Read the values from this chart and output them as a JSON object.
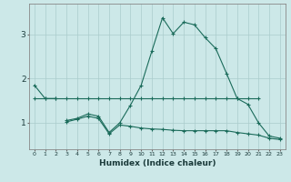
{
  "xlabel": "Humidex (Indice chaleur)",
  "bg_color": "#cce8e8",
  "grid_color": "#aacccc",
  "line_color": "#1a6b5a",
  "x": [
    0,
    1,
    2,
    3,
    4,
    5,
    6,
    7,
    8,
    9,
    10,
    11,
    12,
    13,
    14,
    15,
    16,
    17,
    18,
    19,
    20,
    21,
    22,
    23
  ],
  "line_upper": [
    1.85,
    1.55,
    1.55,
    null,
    null,
    null,
    null,
    null,
    null,
    null,
    null,
    null,
    null,
    null,
    null,
    null,
    null,
    null,
    null,
    null,
    null,
    null,
    null,
    null
  ],
  "line_main": [
    null,
    null,
    null,
    1.05,
    1.1,
    1.2,
    1.15,
    0.78,
    1.0,
    1.4,
    1.85,
    2.62,
    3.38,
    3.02,
    3.28,
    3.22,
    2.93,
    2.68,
    2.12,
    1.55,
    1.42,
    1.0,
    0.7,
    0.65
  ],
  "line_flat": [
    1.55,
    1.55,
    1.55,
    1.55,
    1.55,
    1.55,
    1.55,
    1.55,
    1.55,
    1.55,
    1.55,
    1.55,
    1.55,
    1.55,
    1.55,
    1.55,
    1.55,
    1.55,
    1.55,
    1.55,
    1.55,
    1.55,
    null,
    null
  ],
  "line_lower": [
    null,
    null,
    null,
    1.02,
    1.08,
    1.15,
    1.1,
    0.75,
    0.95,
    0.92,
    0.88,
    0.86,
    0.85,
    0.83,
    0.82,
    0.82,
    0.82,
    0.82,
    0.82,
    0.78,
    0.75,
    0.72,
    0.65,
    0.62
  ],
  "ylim": [
    0.4,
    3.7
  ],
  "yticks": [
    1,
    2,
    3
  ],
  "xlim": [
    -0.5,
    23.5
  ]
}
